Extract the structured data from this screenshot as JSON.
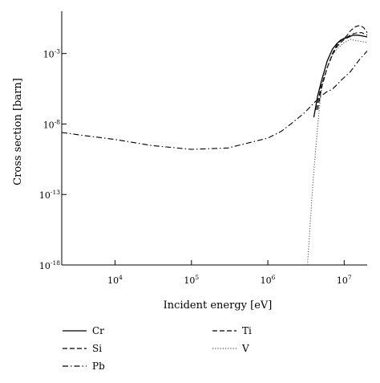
{
  "chart_data": {
    "type": "line",
    "title": "",
    "xlabel": "Incident energy [eV]",
    "ylabel": "Cross section [barn]",
    "x_scale": "log",
    "y_scale": "log",
    "xlim": [
      2000,
      20000000
    ],
    "ylim": [
      1e-18,
      1
    ],
    "x_ticks": [
      {
        "value": 10000,
        "base": "10",
        "exp": "4"
      },
      {
        "value": 100000,
        "base": "10",
        "exp": "5"
      },
      {
        "value": 1000000,
        "base": "10",
        "exp": "6"
      },
      {
        "value": 10000000,
        "base": "10",
        "exp": "7"
      }
    ],
    "y_ticks": [
      {
        "value": 1e-18,
        "base": "10",
        "exp": "-18"
      },
      {
        "value": 1e-13,
        "base": "10",
        "exp": "-13"
      },
      {
        "value": 1e-08,
        "base": "10",
        "exp": "-8"
      },
      {
        "value": 0.001,
        "base": "10",
        "exp": "-3"
      }
    ],
    "grid": false,
    "legend_position": "bottom",
    "series": [
      {
        "name": "Cr",
        "style": "solid",
        "x": [
          4000000,
          4500000,
          5000000,
          6000000,
          7000000,
          8000000,
          9000000,
          10000000,
          11000000,
          13000000,
          15000000,
          17000000,
          20000000
        ],
        "y": [
          3e-08,
          1e-06,
          1e-05,
          0.0003,
          0.002,
          0.005,
          0.009,
          0.012,
          0.013,
          0.02,
          0.02,
          0.018,
          0.015
        ]
      },
      {
        "name": "Ti",
        "style": "dashed",
        "x": [
          4300000,
          5000000,
          6000000,
          7000000,
          8000000,
          9000000,
          10000000,
          11000000,
          12000000,
          14000000,
          16000000,
          18000000,
          20000000
        ],
        "y": [
          1e-07,
          5e-06,
          0.0001,
          0.001,
          0.004,
          0.008,
          0.012,
          0.02,
          0.04,
          0.08,
          0.1,
          0.07,
          0.03
        ]
      },
      {
        "name": "Si",
        "style": "dashed",
        "x": [
          4500000,
          5000000,
          6000000,
          7000000,
          8000000,
          9000000,
          10000000,
          11000000,
          13000000,
          15000000,
          17000000,
          20000000
        ],
        "y": [
          1e-07,
          3e-06,
          0.0001,
          0.0008,
          0.003,
          0.006,
          0.01,
          0.015,
          0.025,
          0.03,
          0.03,
          0.02
        ]
      },
      {
        "name": "V",
        "style": "dotted",
        "x": [
          3300000,
          3500000,
          3800000,
          4200000,
          4700000,
          5200000,
          6000000,
          7000000,
          8000000,
          10000000,
          12000000,
          15000000,
          20000000
        ],
        "y": [
          1e-18,
          1e-16,
          1e-13,
          1e-10,
          1e-07,
          1e-05,
          0.0001,
          0.0008,
          0.002,
          0.006,
          0.01,
          0.008,
          0.006
        ]
      },
      {
        "name": "Pb",
        "style": "dashdot",
        "x": [
          2000,
          4000,
          10000,
          30000,
          100000,
          300000,
          1000000,
          1500000,
          2000000,
          3000000,
          4000000,
          5000000,
          6000000,
          7000000,
          8000000,
          9000000,
          10000000,
          12000000,
          14000000,
          16000000,
          18000000,
          20000000
        ],
        "y": [
          2.5e-09,
          1.5e-09,
          8e-10,
          3e-10,
          1.6e-10,
          2e-10,
          1e-09,
          3e-09,
          1e-08,
          6e-08,
          3e-07,
          1e-06,
          2e-06,
          3e-06,
          6e-06,
          1.2e-05,
          2e-05,
          5e-05,
          0.00015,
          0.0004,
          0.0008,
          0.0015
        ]
      }
    ]
  },
  "legend": [
    {
      "name": "Cr",
      "style": "solid"
    },
    {
      "name": "Ti",
      "style": "dashed"
    },
    {
      "name": "Si",
      "style": "dashed"
    },
    {
      "name": "V",
      "style": "dotted"
    },
    {
      "name": "Pb",
      "style": "dashdot"
    }
  ]
}
